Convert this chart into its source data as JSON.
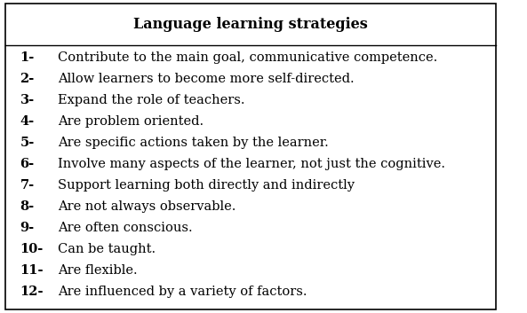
{
  "title": "Language learning strategies",
  "items": [
    {
      "num": "1-",
      "text": "Contribute to the main goal, communicative competence."
    },
    {
      "num": "2-",
      "text": "Allow learners to become more self-directed."
    },
    {
      "num": "3-",
      "text": "Expand the role of teachers."
    },
    {
      "num": "4-",
      "text": "Are problem oriented."
    },
    {
      "num": "5-",
      "text": "Are specific actions taken by the learner."
    },
    {
      "num": "6-",
      "text": "Involve many aspects of the learner, not just the cognitive."
    },
    {
      "num": "7-",
      "text": "Support learning both directly and indirectly"
    },
    {
      "num": "8-",
      "text": "Are not always observable."
    },
    {
      "num": "9-",
      "text": "Are often conscious."
    },
    {
      "num": "10-",
      "text": "Can be taught."
    },
    {
      "num": "11-",
      "text": "Are flexible."
    },
    {
      "num": "12-",
      "text": "Are influenced by a variety of factors."
    }
  ],
  "bg_color": "#ffffff",
  "border_color": "#000000",
  "text_color": "#000000",
  "title_fontsize": 11.5,
  "item_fontsize": 10.5,
  "fig_width": 5.93,
  "fig_height": 3.53,
  "dpi": 100
}
